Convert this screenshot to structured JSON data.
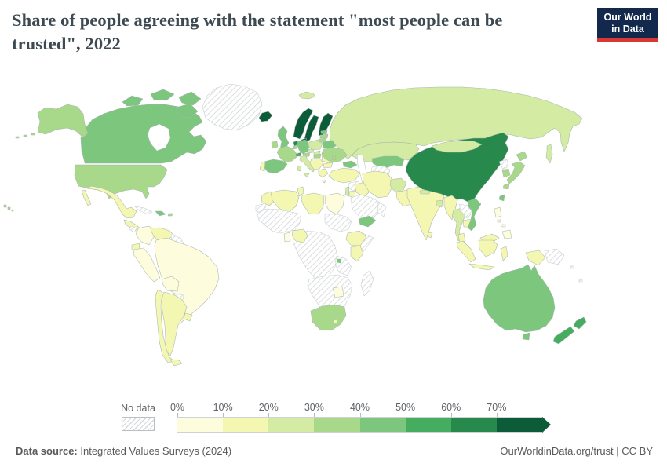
{
  "header": {
    "title": "Share of people agreeing with the statement \"most people can be trusted\", 2022",
    "logo_line1": "Our World",
    "logo_line2": "in Data",
    "logo_bg": "#12294d",
    "logo_accent": "#d73831"
  },
  "legend": {
    "no_data_label": "No data",
    "tick_labels": [
      "0%",
      "10%",
      "20%",
      "30%",
      "40%",
      "50%",
      "60%",
      "70%"
    ],
    "colors": [
      "#fdfcdc",
      "#f4f7b2",
      "#d3eba2",
      "#a8d98b",
      "#7cc67e",
      "#45ad60",
      "#27894b",
      "#0c5c39"
    ]
  },
  "footer": {
    "source_label": "Data source:",
    "source_text": " Integrated Values Surveys (2024)",
    "link_text": "OurWorldinData.org/trust | CC BY"
  },
  "chart_data": {
    "type": "heatmap",
    "subtype": "choropleth-world-map",
    "title": "Share of people agreeing with the statement \"most people can be trusted\", 2022",
    "unit": "%",
    "buckets": [
      "0-10%",
      "10-20%",
      "20-30%",
      "30-40%",
      "40-50%",
      "50-60%",
      "60-70%",
      "70%+"
    ],
    "no_data_bucket": -1,
    "regions": {
      "united-states": {
        "label": "United States",
        "bucket": 3
      },
      "canada": {
        "label": "Canada",
        "bucket": 4
      },
      "greenland": {
        "label": "Greenland",
        "bucket": -1
      },
      "mexico": {
        "label": "Mexico",
        "bucket": 1
      },
      "central-america": {
        "label": "Guatemala & Honduras",
        "bucket": 1
      },
      "nicaragua": {
        "label": "Nicaragua",
        "bucket": -1
      },
      "panama": {
        "label": "Panama",
        "bucket": -1
      },
      "cuba": {
        "label": "Cuba",
        "bucket": -1
      },
      "hispaniola": {
        "label": "Haiti & Dominican Rep.",
        "bucket": 4
      },
      "puerto-rico": {
        "label": "Puerto Rico",
        "bucket": 3
      },
      "colombia": {
        "label": "Colombia",
        "bucket": 0
      },
      "venezuela": {
        "label": "Venezuela",
        "bucket": 1
      },
      "guyanas": {
        "label": "Guyana & Suriname",
        "bucket": -1
      },
      "ecuador": {
        "label": "Ecuador",
        "bucket": 1
      },
      "peru": {
        "label": "Peru",
        "bucket": 0
      },
      "brazil": {
        "label": "Brazil",
        "bucket": 0
      },
      "bolivia": {
        "label": "Bolivia",
        "bucket": 0
      },
      "paraguay": {
        "label": "Paraguay",
        "bucket": -1
      },
      "argentina": {
        "label": "Argentina",
        "bucket": 1
      },
      "chile": {
        "label": "Chile",
        "bucket": 1
      },
      "uruguay": {
        "label": "Uruguay",
        "bucket": 1
      },
      "iceland": {
        "label": "Iceland",
        "bucket": 7
      },
      "norway": {
        "label": "Norway",
        "bucket": 7
      },
      "sweden": {
        "label": "Sweden",
        "bucket": 7
      },
      "finland": {
        "label": "Finland",
        "bucket": 7
      },
      "denmark": {
        "label": "Denmark",
        "bucket": 7
      },
      "svalbard": {
        "label": "Svalbard",
        "bucket": 2
      },
      "united-kingdom": {
        "label": "United Kingdom",
        "bucket": 4
      },
      "ireland": {
        "label": "Ireland",
        "bucket": 3
      },
      "netherlands": {
        "label": "Netherlands",
        "bucket": 6
      },
      "belgium": {
        "label": "Belgium",
        "bucket": 3
      },
      "germany": {
        "label": "Germany",
        "bucket": 4
      },
      "france": {
        "label": "France",
        "bucket": 3
      },
      "spain": {
        "label": "Spain",
        "bucket": 4
      },
      "portugal": {
        "label": "Portugal",
        "bucket": 1
      },
      "switzerland": {
        "label": "Switzerland",
        "bucket": 5
      },
      "austria": {
        "label": "Austria",
        "bucket": 3
      },
      "italy": {
        "label": "Italy",
        "bucket": 2
      },
      "czechia": {
        "label": "Czechia",
        "bucket": 2
      },
      "poland": {
        "label": "Poland",
        "bucket": 2
      },
      "slovakia": {
        "label": "Slovakia",
        "bucket": 2
      },
      "hungary": {
        "label": "Hungary",
        "bucket": 3
      },
      "western-balkans": {
        "label": "Western Balkans",
        "bucket": 1
      },
      "greece": {
        "label": "Greece",
        "bucket": 1
      },
      "romania": {
        "label": "Romania",
        "bucket": 1
      },
      "bulgaria": {
        "label": "Bulgaria",
        "bucket": 1
      },
      "estonia": {
        "label": "Estonia",
        "bucket": 4
      },
      "latvia": {
        "label": "Latvia",
        "bucket": 3
      },
      "lithuania": {
        "label": "Lithuania",
        "bucket": 3
      },
      "belarus": {
        "label": "Belarus",
        "bucket": 4
      },
      "ukraine": {
        "label": "Ukraine",
        "bucket": 3
      },
      "moldova": {
        "label": "Moldova",
        "bucket": 3
      },
      "russia": {
        "label": "Russia",
        "bucket": 2
      },
      "kazakhstan": {
        "label": "Kazakhstan",
        "bucket": 2
      },
      "central-asia": {
        "label": "Uzbekistan, Kyrgyzstan & Tajikistan",
        "bucket": 4
      },
      "turkmenistan": {
        "label": "Turkmenistan",
        "bucket": -1
      },
      "caucasus": {
        "label": "Georgia & Azerbaijan",
        "bucket": 4
      },
      "turkey": {
        "label": "Turkey",
        "bucket": 1
      },
      "syria": {
        "label": "Syria",
        "bucket": -1
      },
      "israel-lebanon": {
        "label": "Israel & Lebanon",
        "bucket": 2
      },
      "jordan": {
        "label": "Jordan",
        "bucket": 1
      },
      "iraq": {
        "label": "Iraq",
        "bucket": 1
      },
      "iran": {
        "label": "Iran",
        "bucket": 1
      },
      "saudi-arabia": {
        "label": "Saudi Arabia",
        "bucket": -1
      },
      "yemen": {
        "label": "Yemen",
        "bucket": 4
      },
      "oman": {
        "label": "Oman",
        "bucket": -1
      },
      "afghanistan": {
        "label": "Afghanistan",
        "bucket": 2
      },
      "pakistan": {
        "label": "Pakistan",
        "bucket": 1
      },
      "india": {
        "label": "India",
        "bucket": 1
      },
      "nepal": {
        "label": "Nepal",
        "bucket": 2
      },
      "bangladesh": {
        "label": "Bangladesh",
        "bucket": 2
      },
      "sri-lanka": {
        "label": "Sri Lanka",
        "bucket": 1
      },
      "china": {
        "label": "China",
        "bucket": 6
      },
      "mongolia": {
        "label": "Mongolia",
        "bucket": 2
      },
      "north-korea": {
        "label": "North Korea",
        "bucket": -1
      },
      "south-korea": {
        "label": "South Korea",
        "bucket": 3
      },
      "japan": {
        "label": "Japan",
        "bucket": 3
      },
      "taiwan": {
        "label": "Taiwan",
        "bucket": 4
      },
      "myanmar": {
        "label": "Myanmar",
        "bucket": 1
      },
      "thailand": {
        "label": "Thailand",
        "bucket": 2
      },
      "laos": {
        "label": "Laos",
        "bucket": -1
      },
      "cambodia": {
        "label": "Cambodia",
        "bucket": 1
      },
      "vietnam": {
        "label": "Vietnam",
        "bucket": 4
      },
      "malaysia": {
        "label": "Malaysia",
        "bucket": 1
      },
      "philippines": {
        "label": "Philippines",
        "bucket": 0
      },
      "indonesia": {
        "label": "Indonesia",
        "bucket": 1
      },
      "papua-new-guinea": {
        "label": "Papua New Guinea",
        "bucket": -1
      },
      "pacific-islands": {
        "label": "Pacific Islands",
        "bucket": -1
      },
      "australia": {
        "label": "Australia",
        "bucket": 4
      },
      "new-zealand": {
        "label": "New Zealand",
        "bucket": 5
      },
      "morocco": {
        "label": "Morocco",
        "bucket": 1
      },
      "western-sahara": {
        "label": "Western Sahara",
        "bucket": -1
      },
      "algeria": {
        "label": "Algeria",
        "bucket": 1
      },
      "tunisia": {
        "label": "Tunisia",
        "bucket": 1
      },
      "libya": {
        "label": "Libya",
        "bucket": 1
      },
      "egypt": {
        "label": "Egypt",
        "bucket": 0
      },
      "sahel": {
        "label": "Sahel & West Africa",
        "bucket": -1
      },
      "sudan-horn": {
        "label": "Sudan & Chad",
        "bucket": -1
      },
      "somalia": {
        "label": "Somalia",
        "bucket": -1
      },
      "central-africa": {
        "label": "Central Africa",
        "bucket": -1
      },
      "east-africa": {
        "label": "Tanzania & Uganda",
        "bucket": -1
      },
      "southern-africa": {
        "label": "Southern Africa",
        "bucket": -1
      },
      "madagascar": {
        "label": "Madagascar",
        "bucket": -1
      },
      "ghana": {
        "label": "Ghana",
        "bucket": 0
      },
      "nigeria": {
        "label": "Nigeria",
        "bucket": 1
      },
      "ethiopia": {
        "label": "Ethiopia",
        "bucket": 1
      },
      "kenya": {
        "label": "Kenya",
        "bucket": 1
      },
      "rwanda": {
        "label": "Rwanda",
        "bucket": 4
      },
      "zimbabwe": {
        "label": "Zimbabwe",
        "bucket": 0
      },
      "south-africa": {
        "label": "South Africa",
        "bucket": 3
      },
      "lesotho": {
        "label": "Lesotho",
        "bucket": 1
      }
    }
  }
}
